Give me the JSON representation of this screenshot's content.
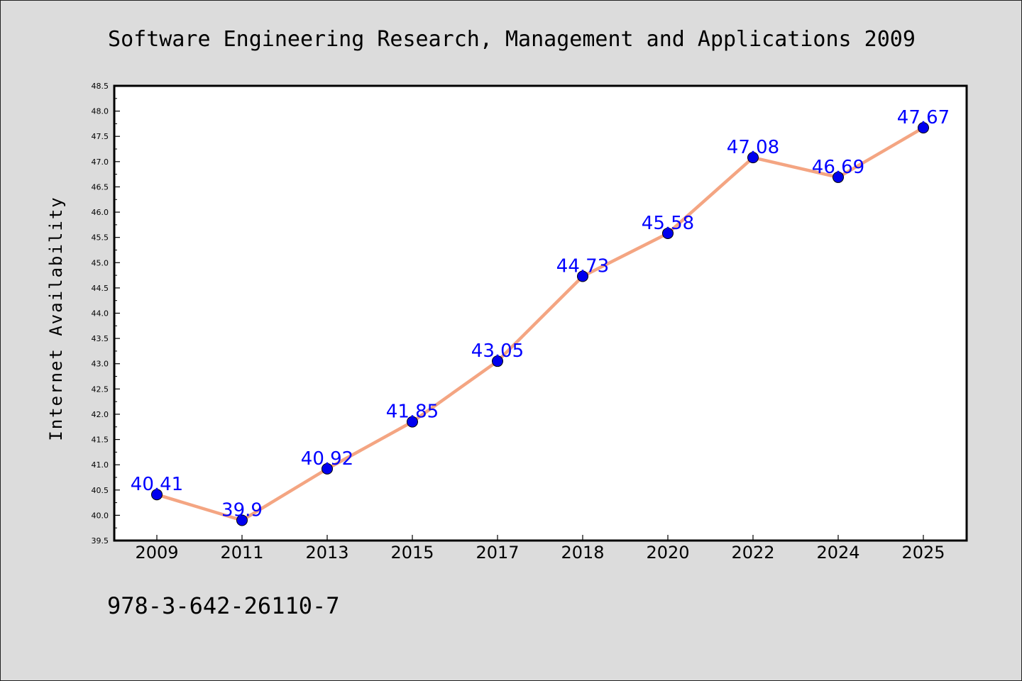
{
  "chart_data": {
    "type": "line",
    "title": "Software Engineering Research, Management and Applications 2009",
    "xlabel": "",
    "ylabel": "Internet Availability",
    "categories": [
      "2009",
      "2011",
      "2013",
      "2015",
      "2017",
      "2018",
      "2020",
      "2022",
      "2024",
      "2025"
    ],
    "series": [
      {
        "values": [
          40.41,
          39.9,
          40.92,
          41.85,
          43.05,
          44.73,
          45.58,
          47.08,
          46.69,
          47.67
        ],
        "data_labels": [
          "40.41",
          "39.9",
          "40.92",
          "41.85",
          "43.05",
          "44.73",
          "45.58",
          "47.08",
          "46.69",
          "47.67"
        ]
      }
    ],
    "ylim": [
      39.5,
      48.5
    ],
    "yticks": [
      "39.5",
      "40.0",
      "40.5",
      "41.0",
      "41.5",
      "42.0",
      "42.5",
      "43.0",
      "43.5",
      "44.0",
      "44.5",
      "45.0",
      "45.5",
      "46.0",
      "46.5",
      "47.0",
      "47.5",
      "48.0",
      "48.5"
    ],
    "grid": false,
    "legend": "none",
    "colors": {
      "line": "#f4a582",
      "marker": "#0000ee",
      "data_label": "#0000ff",
      "background": "#dcdcdc",
      "plot_background": "#ffffff"
    }
  },
  "footer_text": "978-3-642-26110-7"
}
